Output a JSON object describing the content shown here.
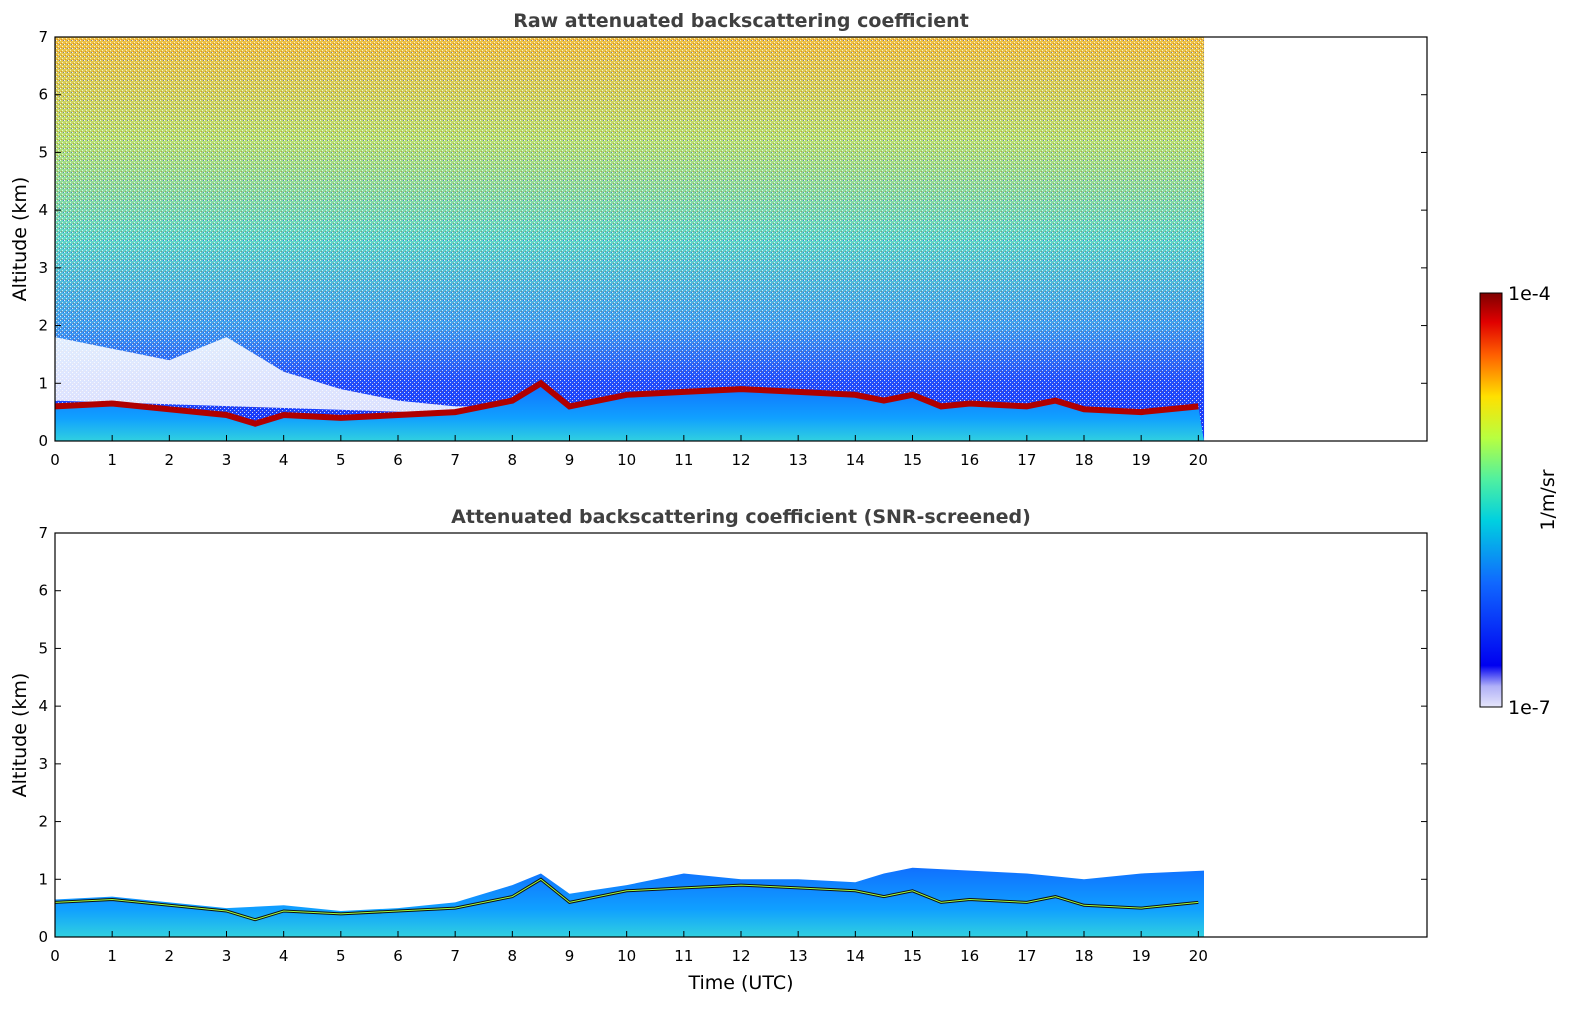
{
  "chart_data": [
    {
      "type": "heatmap",
      "title": "Raw attenuated backscattering coefficient",
      "xlabel": "",
      "ylabel": "Altitude (km)",
      "xlim": [
        0,
        24
      ],
      "ylim": [
        0,
        7
      ],
      "x_ticks": [
        "0",
        "1",
        "2",
        "3",
        "4",
        "5",
        "6",
        "7",
        "8",
        "9",
        "10",
        "11",
        "12",
        "13",
        "14",
        "15",
        "16",
        "17",
        "18",
        "19",
        "20"
      ],
      "y_ticks": [
        "0",
        "1",
        "2",
        "3",
        "4",
        "5",
        "6",
        "7"
      ],
      "data_end_time": 20.1,
      "boundary_layer_top_km": [
        [
          0,
          0.6
        ],
        [
          1,
          0.65
        ],
        [
          2,
          0.55
        ],
        [
          3,
          0.45
        ],
        [
          3.5,
          0.3
        ],
        [
          4,
          0.45
        ],
        [
          5,
          0.4
        ],
        [
          6,
          0.45
        ],
        [
          7,
          0.5
        ],
        [
          8,
          0.7
        ],
        [
          8.5,
          1.0
        ],
        [
          9,
          0.6
        ],
        [
          10,
          0.8
        ],
        [
          11,
          0.85
        ],
        [
          12,
          0.9
        ],
        [
          13,
          0.85
        ],
        [
          14,
          0.8
        ],
        [
          14.5,
          0.7
        ],
        [
          15,
          0.8
        ],
        [
          15.5,
          0.6
        ],
        [
          16,
          0.65
        ],
        [
          17,
          0.6
        ],
        [
          17.5,
          0.7
        ],
        [
          18,
          0.55
        ],
        [
          19,
          0.5
        ],
        [
          20,
          0.6
        ]
      ]
    },
    {
      "type": "heatmap",
      "title": "Attenuated backscattering coefficient (SNR-screened)",
      "xlabel": "Time (UTC)",
      "ylabel": "Altitude (km)",
      "xlim": [
        0,
        24
      ],
      "ylim": [
        0,
        7
      ],
      "x_ticks": [
        "0",
        "1",
        "2",
        "3",
        "4",
        "5",
        "6",
        "7",
        "8",
        "9",
        "10",
        "11",
        "12",
        "13",
        "14",
        "15",
        "16",
        "17",
        "18",
        "19",
        "20"
      ],
      "y_ticks": [
        "0",
        "1",
        "2",
        "3",
        "4",
        "5",
        "6",
        "7"
      ],
      "data_end_time": 20.1
    }
  ],
  "colorbar": {
    "label": "1/m/sr",
    "max_label": "1e-4",
    "min_label": "1e-7",
    "colors": [
      "#e6e6fa",
      "#7f0000",
      "#b30000",
      "#ff2000",
      "#ff8000",
      "#ffd000",
      "#c8ff30",
      "#60ffa0",
      "#00e0e0",
      "#00a0ff",
      "#1050ff",
      "#0000e0"
    ]
  }
}
